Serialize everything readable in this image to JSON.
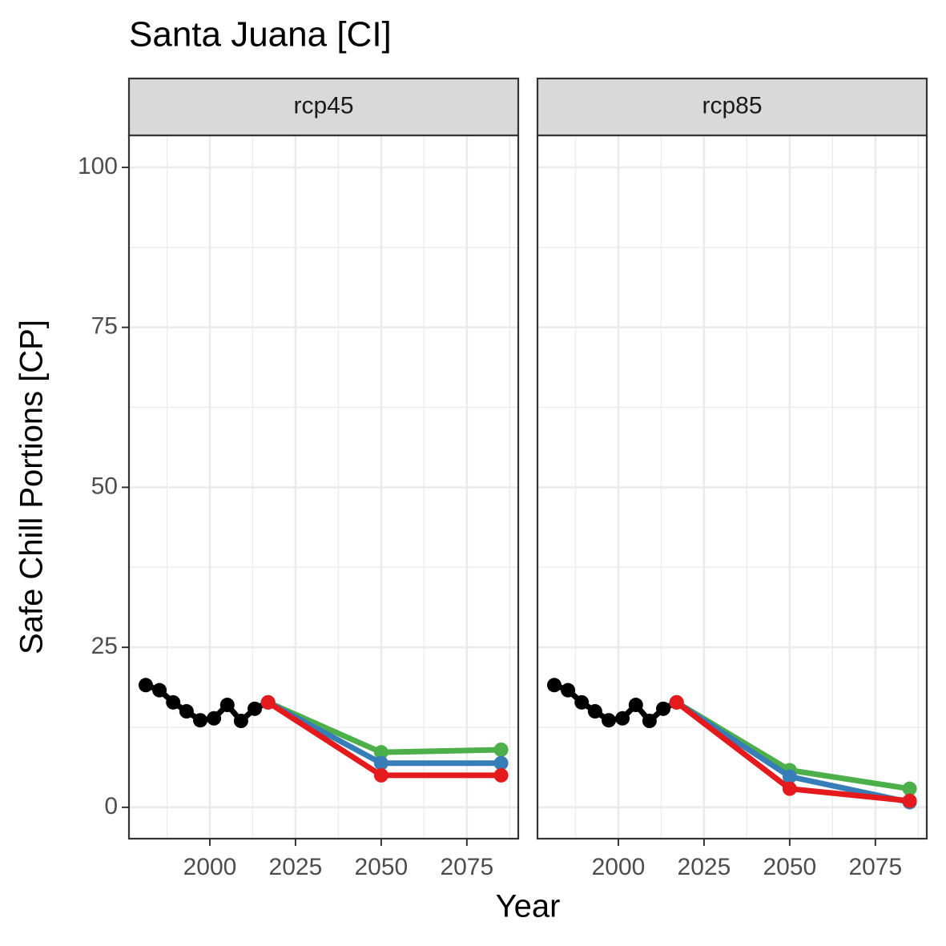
{
  "title": "Santa Juana [CI]",
  "x_label": "Year",
  "y_label": "Safe Chill Portions [CP]",
  "chart_data": [
    {
      "type": "line",
      "strip": "rcp45",
      "xlim": [
        1976.4,
        2090
      ],
      "xticks": [
        2000,
        2025,
        2050,
        2075
      ],
      "x_minor_ticks": [
        1987.5,
        2012.5,
        2037.5,
        2062.5,
        2087.5
      ],
      "ylim": [
        -4.9,
        105
      ],
      "yticks": [
        0,
        25,
        50,
        75,
        100
      ],
      "y_minor_ticks": [
        12.5,
        37.5,
        62.5,
        87.5
      ],
      "grid": true,
      "series": [
        {
          "color": "#000000",
          "x": [
            1981.3,
            1985.3,
            1989.3,
            1993.2,
            1997.2,
            2001.2,
            2005.1,
            2009.1,
            2013.1,
            2017
          ],
          "values": [
            19.1,
            18.3,
            16.4,
            15.0,
            13.6,
            13.9,
            16.0,
            13.5,
            15.4,
            16.4
          ]
        },
        {
          "color": "#4daf4a",
          "x": [
            2017,
            2050,
            2085
          ],
          "values": [
            16.4,
            8.6,
            9.0
          ]
        },
        {
          "color": "#377eb8",
          "x": [
            2017,
            2050,
            2085
          ],
          "values": [
            16.4,
            6.9,
            6.9
          ]
        },
        {
          "color": "#e41a1c",
          "x": [
            2017,
            2050,
            2085
          ],
          "values": [
            16.4,
            5.0,
            5.0
          ]
        }
      ]
    },
    {
      "type": "line",
      "strip": "rcp85",
      "xlim": [
        1976.4,
        2090
      ],
      "xticks": [
        2000,
        2025,
        2050,
        2075
      ],
      "x_minor_ticks": [
        1987.5,
        2012.5,
        2037.5,
        2062.5,
        2087.5
      ],
      "ylim": [
        -4.9,
        105
      ],
      "yticks": [
        0,
        25,
        50,
        75,
        100
      ],
      "y_minor_ticks": [
        12.5,
        37.5,
        62.5,
        87.5
      ],
      "grid": true,
      "series": [
        {
          "color": "#000000",
          "x": [
            1981.3,
            1985.3,
            1989.3,
            1993.2,
            1997.2,
            2001.2,
            2005.1,
            2009.1,
            2013.1,
            2017
          ],
          "values": [
            19.1,
            18.3,
            16.4,
            15.0,
            13.6,
            13.9,
            16.0,
            13.5,
            15.4,
            16.4
          ]
        },
        {
          "color": "#4daf4a",
          "x": [
            2017,
            2050,
            2085
          ],
          "values": [
            16.4,
            5.8,
            2.9
          ]
        },
        {
          "color": "#377eb8",
          "x": [
            2017,
            2050,
            2085
          ],
          "values": [
            16.4,
            4.8,
            0.8
          ]
        },
        {
          "color": "#e41a1c",
          "x": [
            2017,
            2050,
            2085
          ],
          "values": [
            16.4,
            2.9,
            1.0
          ]
        }
      ]
    }
  ]
}
